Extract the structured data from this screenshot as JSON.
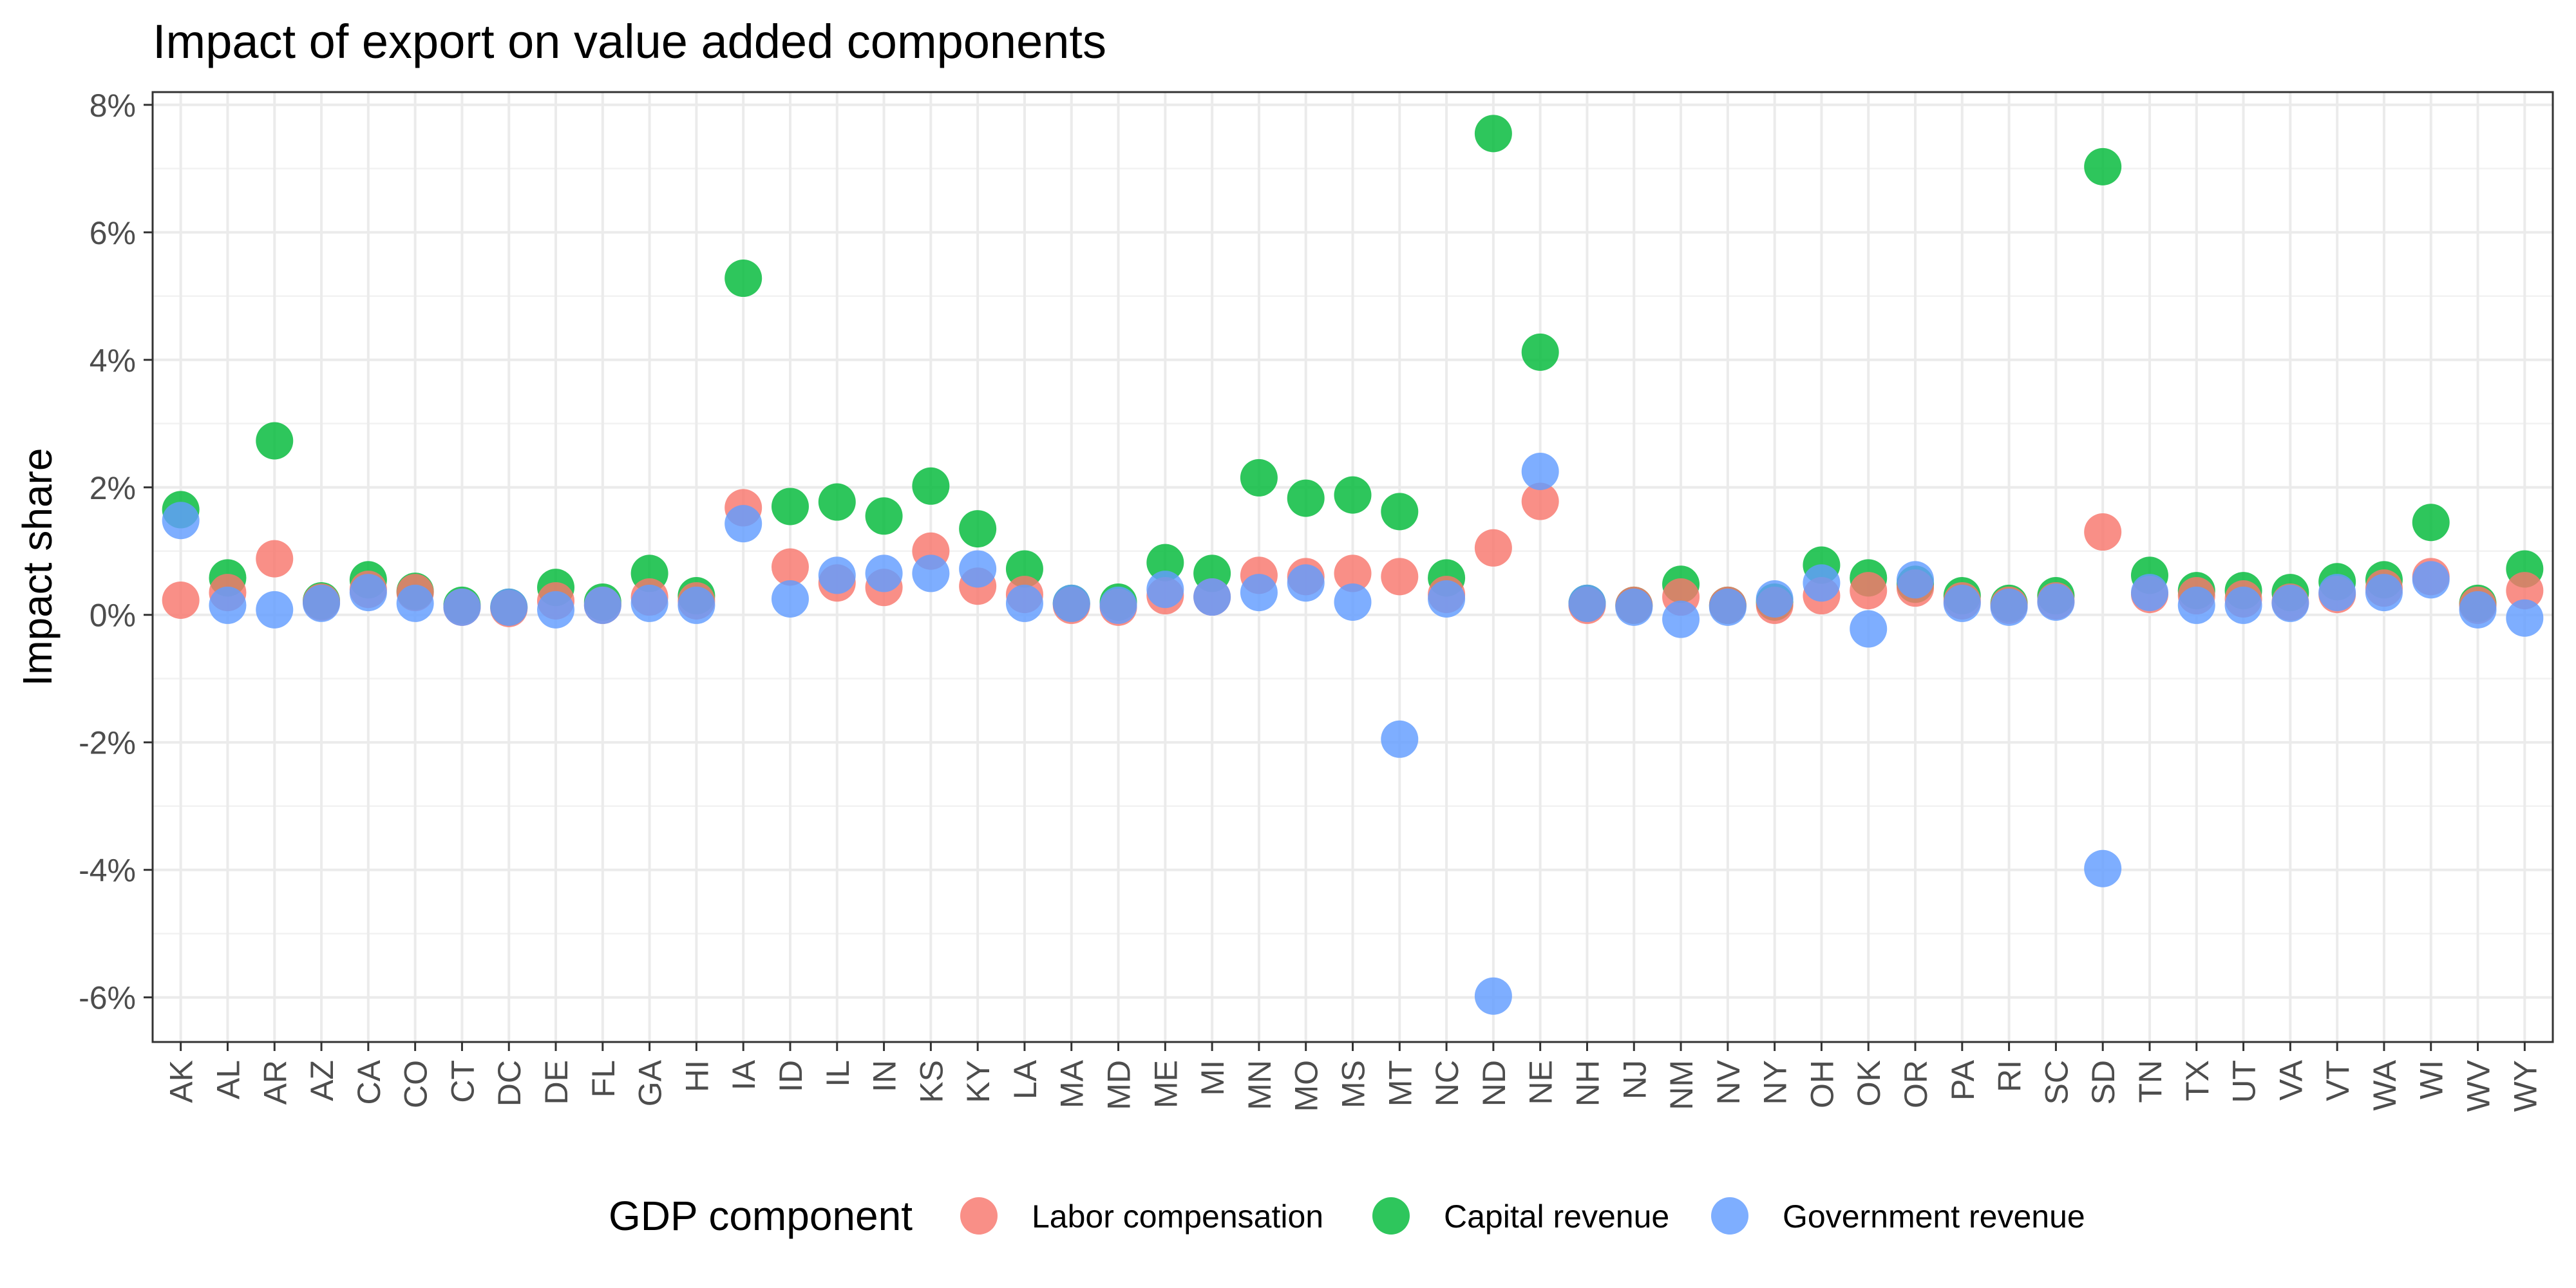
{
  "chart_data": {
    "type": "scatter",
    "title": "Impact of export on value added components",
    "xlabel": "",
    "ylabel": "Impact share",
    "ylim": [
      -6.7,
      8.2
    ],
    "yticks": [
      -6,
      -4,
      -2,
      0,
      2,
      4,
      6,
      8
    ],
    "ytick_labels": [
      "-6%",
      "-4%",
      "-2%",
      "0%",
      "2%",
      "4%",
      "6%",
      "8%"
    ],
    "grid": true,
    "legend": {
      "title": "GDP component",
      "position": "bottom"
    },
    "categories": [
      "AK",
      "AL",
      "AR",
      "AZ",
      "CA",
      "CO",
      "CT",
      "DC",
      "DE",
      "FL",
      "GA",
      "HI",
      "IA",
      "ID",
      "IL",
      "IN",
      "KS",
      "KY",
      "LA",
      "MA",
      "MD",
      "ME",
      "MI",
      "MN",
      "MO",
      "MS",
      "MT",
      "NC",
      "ND",
      "NE",
      "NH",
      "NJ",
      "NM",
      "NV",
      "NY",
      "OH",
      "OK",
      "OR",
      "PA",
      "RI",
      "SC",
      "SD",
      "TN",
      "TX",
      "UT",
      "VA",
      "VT",
      "WA",
      "WI",
      "WV",
      "WY"
    ],
    "series": [
      {
        "name": "Capital revenue",
        "color": "#00ba38",
        "values": [
          1.65,
          0.58,
          2.73,
          0.22,
          0.55,
          0.37,
          0.15,
          0.12,
          0.43,
          0.2,
          0.65,
          0.3,
          5.28,
          1.7,
          1.77,
          1.55,
          2.02,
          1.35,
          0.72,
          0.18,
          0.2,
          0.82,
          0.65,
          2.15,
          1.83,
          1.88,
          1.62,
          0.58,
          7.55,
          4.12,
          0.18,
          0.15,
          0.48,
          0.15,
          0.2,
          0.78,
          0.58,
          0.48,
          0.3,
          0.18,
          0.3,
          7.03,
          0.62,
          0.38,
          0.38,
          0.35,
          0.52,
          0.55,
          1.45,
          0.18,
          0.72
        ]
      },
      {
        "name": "Labor compensation",
        "color": "#f8766d",
        "values": [
          0.23,
          0.35,
          0.88,
          0.2,
          0.4,
          0.35,
          0.12,
          0.1,
          0.22,
          0.15,
          0.28,
          0.22,
          1.68,
          0.75,
          0.5,
          0.43,
          1.0,
          0.45,
          0.32,
          0.15,
          0.12,
          0.3,
          0.28,
          0.62,
          0.6,
          0.65,
          0.6,
          0.32,
          1.05,
          1.78,
          0.15,
          0.15,
          0.28,
          0.15,
          0.15,
          0.3,
          0.38,
          0.42,
          0.22,
          0.15,
          0.22,
          1.3,
          0.32,
          0.3,
          0.25,
          0.2,
          0.32,
          0.42,
          0.6,
          0.15,
          0.38
        ]
      },
      {
        "name": "Government revenue",
        "color": "#619cff",
        "values": [
          1.48,
          0.15,
          0.08,
          0.18,
          0.35,
          0.18,
          0.12,
          0.12,
          0.08,
          0.15,
          0.18,
          0.15,
          1.43,
          0.25,
          0.62,
          0.65,
          0.65,
          0.72,
          0.18,
          0.18,
          0.15,
          0.4,
          0.28,
          0.35,
          0.5,
          0.2,
          -1.95,
          0.25,
          -5.98,
          2.25,
          0.18,
          0.12,
          -0.07,
          0.12,
          0.25,
          0.5,
          -0.22,
          0.55,
          0.18,
          0.12,
          0.2,
          -3.98,
          0.35,
          0.15,
          0.15,
          0.18,
          0.35,
          0.35,
          0.55,
          0.08,
          -0.05
        ]
      }
    ],
    "legend_order": [
      "Labor compensation",
      "Capital revenue",
      "Government revenue"
    ]
  }
}
